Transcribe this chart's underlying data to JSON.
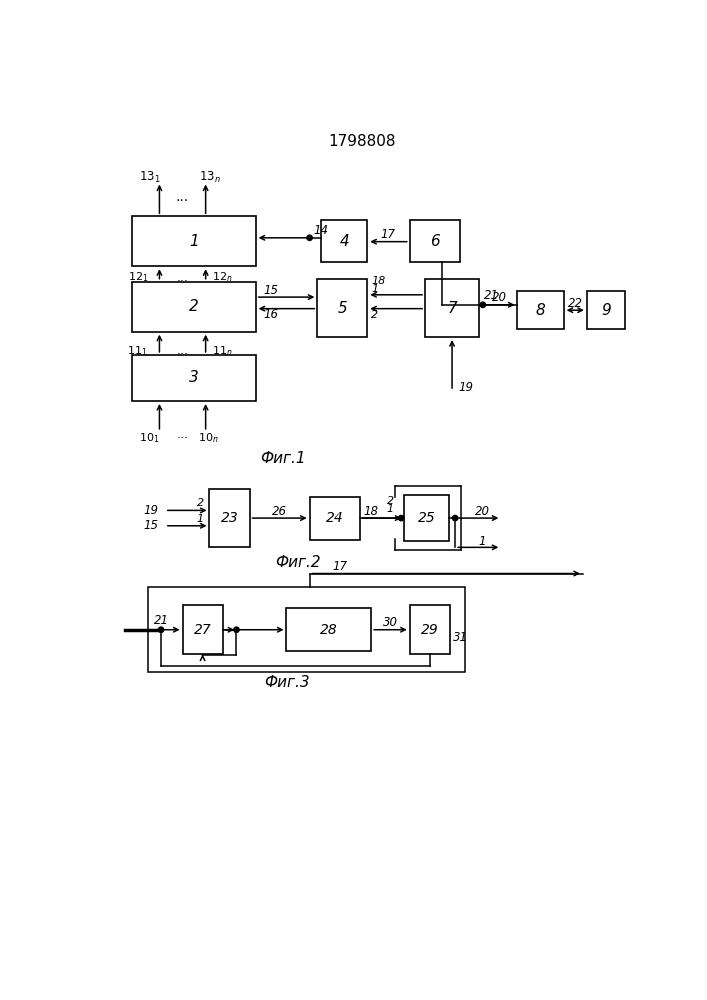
{
  "title": "1798808",
  "fig1_caption": "Фиг.1",
  "fig2_caption": "Фиг.2",
  "fig3_caption": "Фиг.3",
  "background": "#ffffff"
}
